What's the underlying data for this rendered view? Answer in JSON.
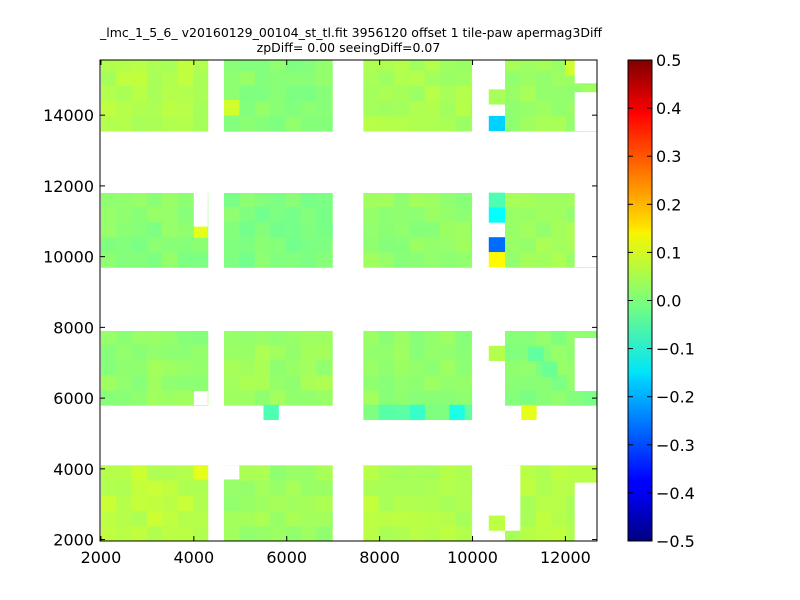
{
  "chart_data": {
    "type": "heatmap",
    "title": "_lmc_1_5_6_ v20160129_00104_st_tl.fit 3956120 offset 1 tile-paw apermag3Diff",
    "subtitle": "zpDiff= 0.00 seeingDiff=0.07",
    "xlabel": "",
    "ylabel": "",
    "xlim": [
      1980,
      12680
    ],
    "ylim": [
      1960,
      15560
    ],
    "xticks": [
      {
        "value": 2000,
        "label": "2000"
      },
      {
        "value": 4000,
        "label": "4000"
      },
      {
        "value": 6000,
        "label": "6000"
      },
      {
        "value": 8000,
        "label": "8000"
      },
      {
        "value": 10000,
        "label": "10000"
      },
      {
        "value": 12000,
        "label": "12000"
      }
    ],
    "yticks": [
      {
        "value": 2000,
        "label": "2000"
      },
      {
        "value": 4000,
        "label": "4000"
      },
      {
        "value": 6000,
        "label": "6000"
      },
      {
        "value": 8000,
        "label": "8000"
      },
      {
        "value": 10000,
        "label": "10000"
      },
      {
        "value": 12000,
        "label": "12000"
      },
      {
        "value": 14000,
        "label": "14000"
      }
    ],
    "colorbar": {
      "colormap": "jet",
      "range": [
        -0.5,
        0.5
      ],
      "ticks": [
        {
          "value": 0.5,
          "label": "0.5"
        },
        {
          "value": 0.4,
          "label": "0.4"
        },
        {
          "value": 0.3,
          "label": "0.3"
        },
        {
          "value": 0.2,
          "label": "0.2"
        },
        {
          "value": 0.1,
          "label": "0.1"
        },
        {
          "value": 0.0,
          "label": "0.0"
        },
        {
          "value": -0.1,
          "label": "−0.1"
        },
        {
          "value": -0.2,
          "label": "−0.2"
        },
        {
          "value": -0.3,
          "label": "−0.3"
        },
        {
          "value": -0.4,
          "label": "−0.4"
        },
        {
          "value": -0.5,
          "label": "−0.5"
        }
      ]
    },
    "cell_size": [
      330,
      430
    ],
    "tile_rows": [
      {
        "y0": 13550,
        "y1": 15550,
        "patches": [
          {
            "x0": 2000,
            "x1": 4300,
            "value": 0.05
          },
          {
            "x0": 4650,
            "x1": 6980,
            "value": 0.01
          },
          {
            "x0": 7650,
            "x1": 9980,
            "value": 0.04
          },
          {
            "x0": 10700,
            "x1": 12680,
            "value": 0.03
          }
        ]
      },
      {
        "y0": 9700,
        "y1": 11800,
        "patches": [
          {
            "x0": 2000,
            "x1": 4300,
            "value": 0.01
          },
          {
            "x0": 4650,
            "x1": 6980,
            "value": 0.0
          },
          {
            "x0": 7650,
            "x1": 9980,
            "value": 0.02
          },
          {
            "x0": 10700,
            "x1": 12680,
            "value": 0.03
          }
        ]
      },
      {
        "y0": 5800,
        "y1": 7900,
        "patches": [
          {
            "x0": 2000,
            "x1": 4300,
            "value": 0.02
          },
          {
            "x0": 4650,
            "x1": 6980,
            "value": 0.03
          },
          {
            "x0": 7650,
            "x1": 9980,
            "value": 0.02
          },
          {
            "x0": 10700,
            "x1": 12680,
            "value": 0.01
          }
        ]
      },
      {
        "y0": 1960,
        "y1": 4100,
        "patches": [
          {
            "x0": 2000,
            "x1": 4300,
            "value": 0.06
          },
          {
            "x0": 4650,
            "x1": 6980,
            "value": 0.03
          },
          {
            "x0": 7650,
            "x1": 9980,
            "value": 0.05
          },
          {
            "x0": 10700,
            "x1": 12680,
            "value": 0.05
          }
        ]
      }
    ],
    "blank_cells": [
      {
        "x": 12200,
        "y": 14900,
        "w": 480,
        "h": 650
      },
      {
        "x": 12200,
        "y": 13550,
        "w": 480,
        "h": 1100
      },
      {
        "x": 4000,
        "y": 10850,
        "w": 300,
        "h": 1000
      },
      {
        "x": 12200,
        "y": 9700,
        "w": 480,
        "h": 2100
      },
      {
        "x": 4000,
        "y": 5800,
        "w": 300,
        "h": 400
      },
      {
        "x": 12200,
        "y": 6200,
        "w": 480,
        "h": 1500
      },
      {
        "x": 4650,
        "y": 3700,
        "w": 330,
        "h": 400
      },
      {
        "x": 12200,
        "y": 1960,
        "w": 480,
        "h": 1650
      },
      {
        "x": 10700,
        "y": 2250,
        "w": 330,
        "h": 1850
      }
    ],
    "special_cells": [
      {
        "x": 10700,
        "y": 14600,
        "w": 0,
        "h": 0,
        "value": 0.0
      },
      {
        "x": 10350,
        "y": 14300,
        "w": 350,
        "h": 430,
        "value": 0.04
      },
      {
        "x": 10350,
        "y": 13550,
        "w": 350,
        "h": 430,
        "value": -0.17
      },
      {
        "x": 12000,
        "y": 15120,
        "w": 200,
        "h": 430,
        "value": 0.08
      },
      {
        "x": 4650,
        "y": 14000,
        "w": 330,
        "h": 430,
        "value": 0.08
      },
      {
        "x": 4000,
        "y": 11400,
        "w": 300,
        "h": 430,
        "value": 0.07
      },
      {
        "x": 4000,
        "y": 10530,
        "w": 300,
        "h": 430,
        "value": 0.1
      },
      {
        "x": 10350,
        "y": 11380,
        "w": 350,
        "h": 430,
        "value": -0.05
      },
      {
        "x": 10350,
        "y": 10960,
        "w": 350,
        "h": 430,
        "value": -0.12
      },
      {
        "x": 10350,
        "y": 10120,
        "w": 350,
        "h": 430,
        "value": -0.27
      },
      {
        "x": 10350,
        "y": 9700,
        "w": 350,
        "h": 430,
        "value": 0.13
      },
      {
        "x": 12200,
        "y": 11400,
        "w": 480,
        "h": 400,
        "value": 0.04
      },
      {
        "x": 10350,
        "y": 7050,
        "w": 350,
        "h": 430,
        "value": 0.05
      },
      {
        "x": 11200,
        "y": 7050,
        "w": 330,
        "h": 400,
        "value": -0.03
      },
      {
        "x": 11500,
        "y": 6600,
        "w": 330,
        "h": 430,
        "value": -0.02
      },
      {
        "x": 5500,
        "y": 5380,
        "w": 330,
        "h": 430,
        "value": -0.05
      },
      {
        "x": 7650,
        "y": 5380,
        "w": 2330,
        "h": 430,
        "value": -0.02
      },
      {
        "x": 8650,
        "y": 5380,
        "w": 330,
        "h": 430,
        "value": -0.07
      },
      {
        "x": 9500,
        "y": 5380,
        "w": 330,
        "h": 430,
        "value": -0.1
      },
      {
        "x": 11050,
        "y": 5380,
        "w": 330,
        "h": 430,
        "value": 0.1
      },
      {
        "x": 4000,
        "y": 3700,
        "w": 300,
        "h": 400,
        "value": 0.1
      },
      {
        "x": 10350,
        "y": 2250,
        "w": 350,
        "h": 430,
        "value": 0.06
      }
    ]
  }
}
